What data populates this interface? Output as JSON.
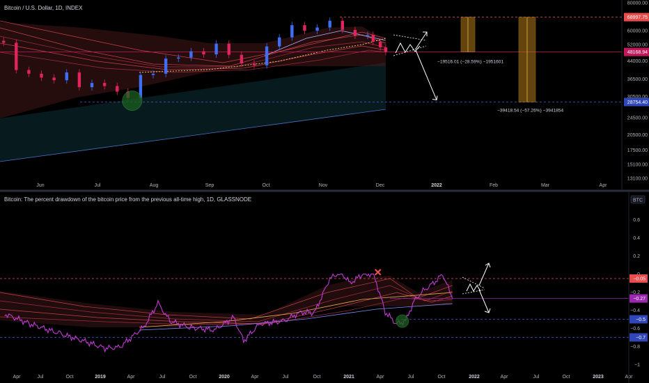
{
  "colors": {
    "price_up": "#3f6ef5",
    "price_down": "#e0245e",
    "drawdown_line": "#c43ad6",
    "ath_line": "#ef5350",
    "support_line": "#3f5fd0",
    "current_line": "#c2185b",
    "ribbon_warm": "#e24a57",
    "ribbon_cool": "#7f8cff",
    "circle_fill": "#1b5e20",
    "box_fill": "#b77c1a",
    "tag_red": "#e84d4d",
    "tag_magenta": "#9c27b0",
    "tag_blue": "#3146b8"
  },
  "chart_data": [
    {
      "type": "line",
      "title": "Bitcoin / U.S. Dollar, 1D, INDEX",
      "x_tick_labels": [
        "Jun",
        "Jul",
        "Aug",
        "Sep",
        "Oct",
        "Nov",
        "Dec",
        "2022",
        "Feb",
        "Mar",
        "Apr"
      ],
      "y_tick_labels": [
        "80000.00",
        "60000.00",
        "52000.00",
        "44000.00",
        "36500.00",
        "30500.00",
        "24500.00",
        "20500.00",
        "17500.00",
        "15100.00",
        "13100.00"
      ],
      "y_scale": "log",
      "ylim": [
        13100,
        80000
      ],
      "x_range": [
        "2021-05-10",
        "2022-04-20"
      ],
      "series": [
        {
          "kind": "price",
          "x": [
            "2021-05-12",
            "2021-05-19",
            "2021-05-26",
            "2021-06-02",
            "2021-06-09",
            "2021-06-16",
            "2021-06-23",
            "2021-06-30",
            "2021-07-07",
            "2021-07-14",
            "2021-07-20",
            "2021-07-27",
            "2021-08-03",
            "2021-08-10",
            "2021-08-17",
            "2021-08-24",
            "2021-08-31",
            "2021-09-07",
            "2021-09-14",
            "2021-09-21",
            "2021-09-28",
            "2021-10-05",
            "2021-10-12",
            "2021-10-19",
            "2021-10-26",
            "2021-11-02",
            "2021-11-09",
            "2021-11-16",
            "2021-11-23",
            "2021-11-30",
            "2021-12-03",
            "2021-12-07",
            "2021-12-10"
          ],
          "y": [
            53000,
            40000,
            38500,
            37000,
            36000,
            39000,
            33500,
            35000,
            33900,
            32000,
            30000,
            38000,
            38500,
            45000,
            45500,
            48500,
            47000,
            52500,
            46800,
            42800,
            42000,
            51000,
            56000,
            63500,
            60000,
            62000,
            66500,
            60500,
            57000,
            57500,
            53500,
            50500,
            48200
          ]
        }
      ],
      "levels": [
        {
          "label": "68997.75",
          "value": 68997.75,
          "kind": "ath"
        },
        {
          "label": "48168.94",
          "value": 48168.94,
          "kind": "current"
        },
        {
          "label": "28754.40",
          "value": 28754.4,
          "kind": "support"
        }
      ],
      "annotations": [
        {
          "text": "−19516.01 (−28.59%) −1951601"
        },
        {
          "text": "−39418.54 (−57.26%) −3941854"
        }
      ]
    },
    {
      "type": "line",
      "title": "Bitcoin: The percent drawdown of the bitcoin price from the previous all-time high, 1D, GLASSNODE",
      "currency_label": "BTC",
      "x_tick_labels": [
        "Apr",
        "Jul",
        "Oct",
        "2019",
        "Apr",
        "Jul",
        "Oct",
        "2020",
        "Apr",
        "Jul",
        "Oct",
        "2021",
        "Apr",
        "Jul",
        "Oct",
        "2022",
        "Apr",
        "Jul",
        "Oct",
        "2023",
        "Apr"
      ],
      "y_tick_labels": [
        "0.6",
        "0.4",
        "0.2",
        "0",
        "−0.2",
        "−0.4",
        "−0.6",
        "−0.8",
        "−1"
      ],
      "ylim": [
        -1.05,
        0.75
      ],
      "x_range": [
        "2018-03-01",
        "2023-06-01"
      ],
      "series": [
        {
          "kind": "drawdown",
          "x": [
            "2018-03-15",
            "2018-06-01",
            "2018-09-01",
            "2018-11-20",
            "2019-01-15",
            "2019-03-01",
            "2019-05-15",
            "2019-06-26",
            "2019-08-01",
            "2019-10-01",
            "2019-12-15",
            "2020-02-12",
            "2020-03-13",
            "2020-05-01",
            "2020-07-15",
            "2020-09-01",
            "2020-10-15",
            "2020-12-01",
            "2020-12-20",
            "2021-01-08",
            "2021-02-01",
            "2021-03-13",
            "2021-04-14",
            "2021-05-19",
            "2021-06-22",
            "2021-07-20",
            "2021-08-15",
            "2021-09-07",
            "2021-10-20",
            "2021-11-10",
            "2021-12-10"
          ],
          "y": [
            -0.44,
            -0.55,
            -0.66,
            -0.75,
            -0.82,
            -0.81,
            -0.58,
            -0.32,
            -0.52,
            -0.59,
            -0.62,
            -0.48,
            -0.74,
            -0.55,
            -0.52,
            -0.42,
            -0.43,
            -0.05,
            0,
            0,
            -0.1,
            0,
            0,
            -0.42,
            -0.55,
            -0.52,
            -0.3,
            -0.2,
            -0.08,
            0,
            -0.27
          ]
        }
      ],
      "levels": [
        {
          "label": "−0.05",
          "value": -0.05,
          "kind": "ath"
        },
        {
          "label": "−0.27",
          "value": -0.27,
          "kind": "current"
        },
        {
          "label": "−0.5",
          "value": -0.5,
          "kind": "support"
        },
        {
          "label": "−0.7",
          "value": -0.7,
          "kind": "support"
        }
      ]
    }
  ]
}
